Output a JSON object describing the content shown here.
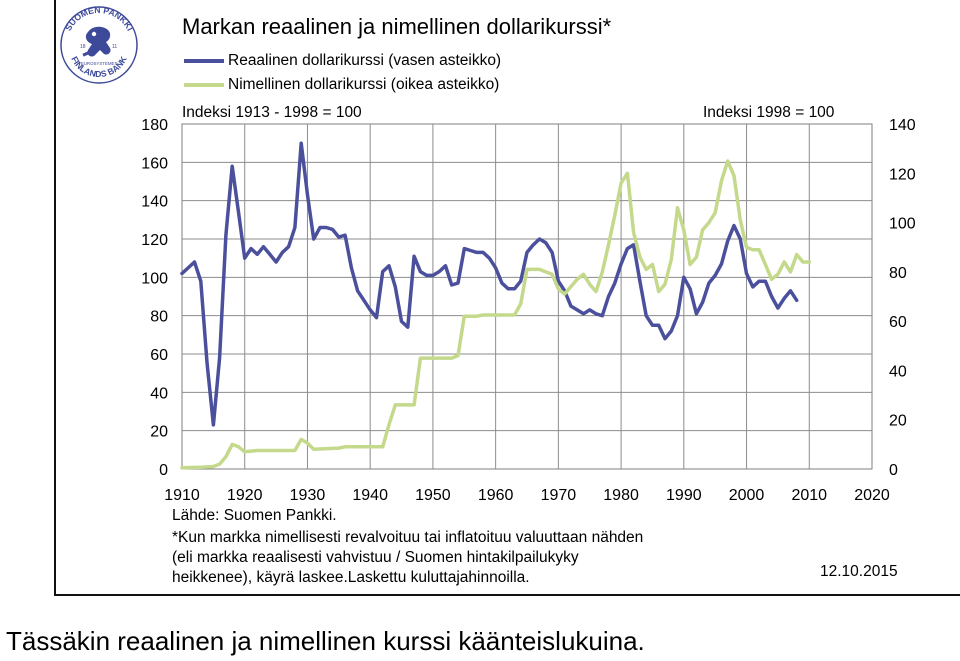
{
  "logo": {
    "text_top": "SUOMEN PANKKI",
    "text_bottom": "FINLANDS BANK",
    "text_mid": "EUROSYSTEMET",
    "years": [
      "18",
      "11"
    ],
    "color": "#3d4a9a"
  },
  "caption": "Tässäkin reaalinen ja nimellinen kurssi käänteislukuina.",
  "footer": {
    "source": "Lähde: Suomen Pankki.",
    "note_lines": [
      "*Kun markka nimellisesti revalvoituu tai inflatoituu valuuttaan nähden",
      "(eli markka reaalisesti vahvistuu / Suomen hintakilpailukyky",
      "heikkenee), käyrä laskee.Laskettu kuluttajahinnoilla."
    ],
    "date": "12.10.2015"
  },
  "chart_data": {
    "type": "line",
    "title": "Markan reaalinen ja nimellinen dollarikurssi*",
    "left_axis_label": "Indeksi 1913 - 1998 = 100",
    "right_axis_label": "Indeksi 1998 = 100",
    "xlim": [
      1910,
      2020
    ],
    "x_ticks": [
      1910,
      1920,
      1930,
      1940,
      1950,
      1960,
      1970,
      1980,
      1990,
      2000,
      2010,
      2020
    ],
    "y_left": {
      "range": [
        0,
        180
      ],
      "ticks": [
        0,
        20,
        40,
        60,
        80,
        100,
        120,
        140,
        160,
        180
      ]
    },
    "y_right": {
      "range": [
        0,
        140
      ],
      "ticks": [
        0,
        20,
        40,
        60,
        80,
        100,
        120,
        140
      ]
    },
    "grid": true,
    "legend_position": "top-left",
    "series": [
      {
        "name": "Reaalinen dollarikurssi (vasen asteikko)",
        "axis": "left",
        "color": "#4b509c",
        "points": [
          [
            1910,
            102
          ],
          [
            1912,
            108
          ],
          [
            1913,
            98
          ],
          [
            1914,
            55
          ],
          [
            1915,
            23
          ],
          [
            1916,
            58
          ],
          [
            1917,
            122
          ],
          [
            1918,
            158
          ],
          [
            1919,
            134
          ],
          [
            1920,
            110
          ],
          [
            1921,
            115
          ],
          [
            1922,
            112
          ],
          [
            1923,
            116
          ],
          [
            1924,
            112
          ],
          [
            1925,
            108
          ],
          [
            1926,
            113
          ],
          [
            1927,
            116
          ],
          [
            1928,
            126
          ],
          [
            1929,
            170
          ],
          [
            1930,
            143
          ],
          [
            1931,
            120
          ],
          [
            1932,
            126
          ],
          [
            1933,
            126
          ],
          [
            1934,
            125
          ],
          [
            1935,
            121
          ],
          [
            1936,
            122
          ],
          [
            1937,
            105
          ],
          [
            1938,
            93
          ],
          [
            1939,
            88
          ],
          [
            1940,
            83
          ],
          [
            1941,
            79
          ],
          [
            1942,
            103
          ],
          [
            1943,
            106
          ],
          [
            1944,
            95
          ],
          [
            1945,
            77
          ],
          [
            1946,
            74
          ],
          [
            1947,
            111
          ],
          [
            1948,
            103
          ],
          [
            1949,
            101
          ],
          [
            1950,
            101
          ],
          [
            1951,
            103
          ],
          [
            1952,
            106
          ],
          [
            1953,
            96
          ],
          [
            1954,
            97
          ],
          [
            1955,
            115
          ],
          [
            1956,
            114
          ],
          [
            1957,
            113
          ],
          [
            1958,
            113
          ],
          [
            1959,
            110
          ],
          [
            1960,
            105
          ],
          [
            1961,
            97
          ],
          [
            1962,
            94
          ],
          [
            1963,
            94
          ],
          [
            1964,
            98
          ],
          [
            1965,
            113
          ],
          [
            1966,
            117
          ],
          [
            1967,
            120
          ],
          [
            1968,
            118
          ],
          [
            1969,
            113
          ],
          [
            1970,
            98
          ],
          [
            1971,
            93
          ],
          [
            1972,
            85
          ],
          [
            1973,
            83
          ],
          [
            1974,
            81
          ],
          [
            1975,
            83
          ],
          [
            1976,
            81
          ],
          [
            1977,
            80
          ],
          [
            1978,
            90
          ],
          [
            1979,
            97
          ],
          [
            1980,
            107
          ],
          [
            1981,
            115
          ],
          [
            1982,
            117
          ],
          [
            1983,
            98
          ],
          [
            1984,
            80
          ],
          [
            1985,
            75
          ],
          [
            1986,
            75
          ],
          [
            1987,
            68
          ],
          [
            1988,
            72
          ],
          [
            1989,
            80
          ],
          [
            1990,
            100
          ],
          [
            1991,
            94
          ],
          [
            1992,
            81
          ],
          [
            1993,
            87
          ],
          [
            1994,
            97
          ],
          [
            1995,
            101
          ],
          [
            1996,
            107
          ],
          [
            1997,
            119
          ],
          [
            1998,
            127
          ],
          [
            1999,
            120
          ],
          [
            2000,
            102
          ],
          [
            2001,
            95
          ],
          [
            2002,
            98
          ],
          [
            2003,
            98
          ],
          [
            2004,
            90
          ],
          [
            2005,
            84
          ],
          [
            2006,
            89
          ],
          [
            2007,
            93
          ],
          [
            2008,
            88
          ]
        ]
      },
      {
        "name": "Nimellinen dollarikurssi (oikea asteikko)",
        "axis": "right",
        "color": "#c4d98b",
        "points": [
          [
            1910,
            0.5
          ],
          [
            1913,
            0.7
          ],
          [
            1915,
            1
          ],
          [
            1916,
            2
          ],
          [
            1917,
            5
          ],
          [
            1918,
            10
          ],
          [
            1919,
            9
          ],
          [
            1920,
            7
          ],
          [
            1922,
            7.5
          ],
          [
            1926,
            7.5
          ],
          [
            1928,
            7.5
          ],
          [
            1929,
            12
          ],
          [
            1930,
            10.5
          ],
          [
            1931,
            8
          ],
          [
            1935,
            8.5
          ],
          [
            1936,
            9
          ],
          [
            1940,
            9
          ],
          [
            1942,
            9
          ],
          [
            1943,
            18
          ],
          [
            1944,
            26
          ],
          [
            1945,
            26
          ],
          [
            1947,
            26
          ],
          [
            1948,
            45
          ],
          [
            1950,
            45
          ],
          [
            1953,
            45
          ],
          [
            1954,
            46
          ],
          [
            1955,
            62
          ],
          [
            1957,
            62
          ],
          [
            1958,
            62.5
          ],
          [
            1963,
            62.5
          ],
          [
            1964,
            67
          ],
          [
            1965,
            81
          ],
          [
            1967,
            81
          ],
          [
            1968,
            80
          ],
          [
            1969,
            79
          ],
          [
            1970,
            73
          ],
          [
            1971,
            71
          ],
          [
            1972,
            74
          ],
          [
            1973,
            77
          ],
          [
            1974,
            79
          ],
          [
            1975,
            75
          ],
          [
            1976,
            72
          ],
          [
            1977,
            80
          ],
          [
            1978,
            91
          ],
          [
            1979,
            103
          ],
          [
            1980,
            116
          ],
          [
            1981,
            120
          ],
          [
            1982,
            96
          ],
          [
            1983,
            86
          ],
          [
            1984,
            81
          ],
          [
            1985,
            83
          ],
          [
            1986,
            72
          ],
          [
            1987,
            75
          ],
          [
            1988,
            85
          ],
          [
            1989,
            106
          ],
          [
            1990,
            97
          ],
          [
            1991,
            83
          ],
          [
            1992,
            86
          ],
          [
            1993,
            97
          ],
          [
            1994,
            100
          ],
          [
            1995,
            104
          ],
          [
            1996,
            117
          ],
          [
            1997,
            125
          ],
          [
            1998,
            119
          ],
          [
            1999,
            101
          ],
          [
            2000,
            90
          ],
          [
            2001,
            89
          ],
          [
            2002,
            89
          ],
          [
            2003,
            83
          ],
          [
            2004,
            77
          ],
          [
            2005,
            79
          ],
          [
            2006,
            84
          ],
          [
            2007,
            80
          ],
          [
            2008,
            87
          ],
          [
            2009,
            84
          ],
          [
            2010,
            84
          ]
        ]
      }
    ]
  }
}
